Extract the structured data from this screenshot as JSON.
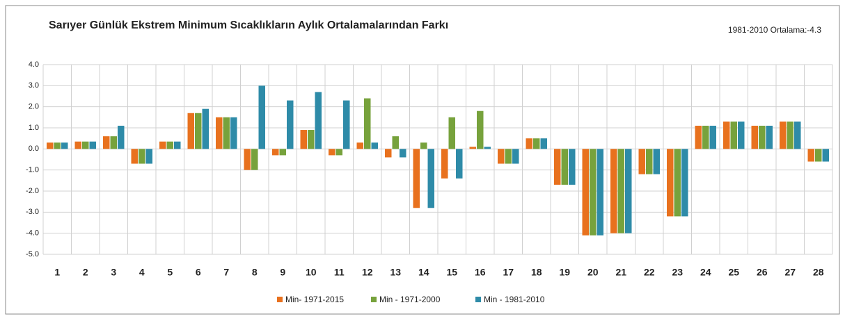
{
  "chart_data": {
    "type": "bar",
    "title": "Sarıyer Günlük Ekstrem Minimum Sıcaklıkların Aylık Ortalamalarından Farkı",
    "annotation": "1981-2010 Ortalama:-4.3",
    "categories": [
      "1",
      "2",
      "3",
      "4",
      "5",
      "6",
      "7",
      "8",
      "9",
      "10",
      "11",
      "12",
      "13",
      "14",
      "15",
      "16",
      "17",
      "18",
      "19",
      "20",
      "21",
      "22",
      "23",
      "24",
      "25",
      "26",
      "27",
      "28"
    ],
    "series": [
      {
        "name": "Min- 1971-2015",
        "color": "#e8711e",
        "values": [
          0.3,
          0.35,
          0.6,
          -0.7,
          0.35,
          1.7,
          1.5,
          -1.0,
          -0.3,
          0.9,
          -0.3,
          0.3,
          -0.4,
          -2.8,
          -1.4,
          0.1,
          -0.7,
          0.5,
          -1.7,
          -4.1,
          -4.0,
          -1.2,
          -3.2,
          1.1,
          1.3,
          1.1,
          1.3,
          -0.6
        ]
      },
      {
        "name": "Min - 1971-2000",
        "color": "#77a23c",
        "values": [
          0.3,
          0.35,
          0.6,
          -0.7,
          0.35,
          1.7,
          1.5,
          -1.0,
          -0.3,
          0.9,
          -0.3,
          2.4,
          0.6,
          0.3,
          1.5,
          1.8,
          -0.7,
          0.5,
          -1.7,
          -4.1,
          -4.0,
          -1.2,
          -3.2,
          1.1,
          1.3,
          1.1,
          1.3,
          -0.6
        ]
      },
      {
        "name": "Min - 1981-2010",
        "color": "#2e8ba8",
        "values": [
          0.3,
          0.35,
          1.1,
          -0.7,
          0.35,
          1.9,
          1.5,
          3.0,
          2.3,
          2.7,
          2.3,
          0.3,
          -0.4,
          -2.8,
          -1.4,
          0.1,
          -0.7,
          0.5,
          -1.7,
          -4.1,
          -4.0,
          -1.2,
          -3.2,
          1.1,
          1.3,
          1.1,
          1.3,
          -0.6
        ]
      }
    ],
    "ylim": [
      -5,
      4
    ],
    "yticks": [
      {
        "value": -5,
        "label": "-5.0"
      },
      {
        "value": -4,
        "label": "-4.0"
      },
      {
        "value": -3,
        "label": "-3.0"
      },
      {
        "value": -2,
        "label": "-2.0"
      },
      {
        "value": -1,
        "label": "-1.0"
      },
      {
        "value": 0,
        "label": "0.0"
      },
      {
        "value": 1,
        "label": "1.0"
      },
      {
        "value": 2,
        "label": "2.0"
      },
      {
        "value": 3,
        "label": "3.0"
      },
      {
        "value": 4,
        "label": "4.0"
      }
    ],
    "grid": true,
    "legend": "bottom"
  }
}
